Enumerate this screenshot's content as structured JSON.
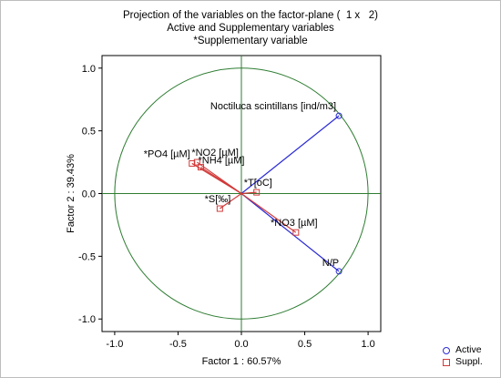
{
  "chart_data": {
    "type": "scatter",
    "title_lines": [
      "Projection of the variables on the factor-plane (  1 x   2)",
      "Active and Supplementary variables",
      "*Supplementary variable"
    ],
    "xlabel": "Factor 1 : 60.57%",
    "ylabel": "Factor 2 : 39.43%",
    "xlim": [
      -1.1,
      1.1
    ],
    "ylim": [
      -1.1,
      1.1
    ],
    "x_ticks": [
      "-1.0",
      "-0.5",
      "0.0",
      "0.5",
      "1.0"
    ],
    "y_ticks": [
      "1.0",
      "0.5",
      "0.0",
      "-0.5",
      "-1.0"
    ],
    "unit_circle": true,
    "legend_position": "bottom-right",
    "colors": {
      "active": "#2b2bd6",
      "supplementary": "#d23a3a",
      "circle": "#2e7d32",
      "axes": "#2e7d32"
    },
    "legend": [
      {
        "label": "Active",
        "marker": "circle"
      },
      {
        "label": "Suppl.",
        "marker": "square"
      }
    ],
    "points": [
      {
        "label": "Noctiluca scintillans [ind/m3]",
        "x": 0.77,
        "y": 0.62,
        "group": "active"
      },
      {
        "label": "N/P",
        "x": 0.77,
        "y": -0.62,
        "group": "active"
      },
      {
        "label": "*PO4 [µM]",
        "x": -0.39,
        "y": 0.24,
        "group": "supplementary"
      },
      {
        "label": "*NO2 [µM]",
        "x": -0.35,
        "y": 0.25,
        "group": "supplementary"
      },
      {
        "label": "*NH4 [µM]",
        "x": -0.32,
        "y": 0.21,
        "group": "supplementary"
      },
      {
        "label": "*T[oC]",
        "x": 0.12,
        "y": 0.01,
        "group": "supplementary"
      },
      {
        "label": "*S[‰]",
        "x": -0.17,
        "y": -0.12,
        "group": "supplementary"
      },
      {
        "label": "*NO3 [µM]",
        "x": 0.43,
        "y": -0.31,
        "group": "supplementary"
      }
    ]
  }
}
